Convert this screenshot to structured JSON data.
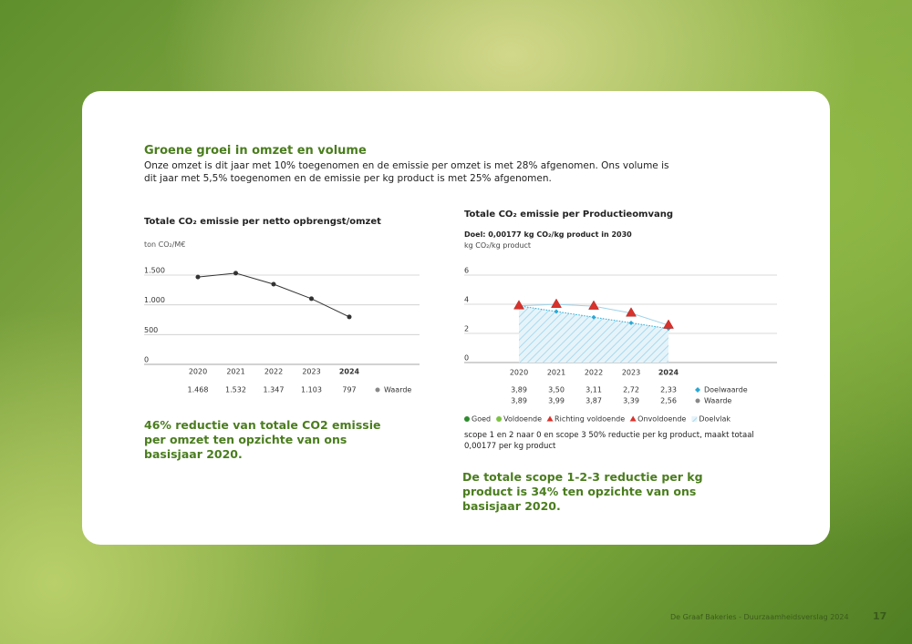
{
  "header": {
    "title": "Groene groei in omzet en volume",
    "paragraph": [
      "Onze omzet is dit jaar met 10% toegenomen en de emissie per omzet is met 28% afgenomen. Ons volume is",
      "dit jaar met 5,5% toegenomen en de emissie per kg product is met 25% afgenomen."
    ]
  },
  "chart_data": [
    {
      "type": "line",
      "title": "Totale CO₂ emissie per netto opbrengst/omzet",
      "y_label": "ton CO₂/M€",
      "categories": [
        "2020",
        "2021",
        "2022",
        "2023",
        "2024"
      ],
      "series": [
        {
          "name": "Waarde",
          "color": "#333333",
          "values": [
            1468,
            1532,
            1347,
            1103,
            797
          ],
          "value_labels": [
            "1.468",
            "1.532",
            "1.347",
            "1.103",
            "797"
          ]
        }
      ],
      "ylim": [
        0,
        1500
      ],
      "yticks": [
        0,
        500,
        {
          "value": 1000,
          "label": "1.000"
        },
        {
          "value": 1500,
          "label": "1.500"
        }
      ],
      "grid": true
    },
    {
      "type": "line",
      "title": "Totale CO₂ emissie per Productieomvang",
      "subtitle": "Doel: 0,00177 kg CO₂/kg product in 2030",
      "y_label": "kg CO₂/kg product",
      "categories": [
        "2020",
        "2021",
        "2022",
        "2023",
        "2024"
      ],
      "series": [
        {
          "name": "Doelwaarde",
          "color": "#2aa8d4",
          "values": [
            3.89,
            3.5,
            3.11,
            2.72,
            2.33
          ],
          "value_labels": [
            "3,89",
            "3,50",
            "3,11",
            "2,72",
            "2,33"
          ]
        },
        {
          "name": "Waarde",
          "color": "#888888",
          "values": [
            3.89,
            3.99,
            3.87,
            3.39,
            2.56
          ],
          "value_labels": [
            "3,89",
            "3,99",
            "3,87",
            "3,39",
            "2,56"
          ]
        }
      ],
      "ylim": [
        0,
        6
      ],
      "yticks": [
        0,
        2,
        4,
        6
      ],
      "grid": true,
      "status_legend": [
        {
          "name": "Goed",
          "color": "#2e8b2e"
        },
        {
          "name": "Voldoende",
          "color": "#7cc242"
        },
        {
          "name": "Richting voldoende",
          "color": "#d9312b"
        },
        {
          "name": "Onvoldoende",
          "color": "#d9312b"
        },
        {
          "name": "Doelvlak",
          "color": "#bfe3f3"
        }
      ],
      "note": "scope 1 en 2 naar 0 en scope 3 50% reductie per kg product, maakt totaal 0,00177 per kg product"
    }
  ],
  "highlights": [
    "46% reductie van totale CO2 emissie per omzet ten opzichte van ons basisjaar 2020.",
    "De totale scope 1-2-3 reductie per kg product is 34% ten opzichte van ons basisjaar 2020."
  ],
  "footer": {
    "text": "De Graaf Bakeries - Duurzaamheidsverslag 2024",
    "page": "17"
  }
}
